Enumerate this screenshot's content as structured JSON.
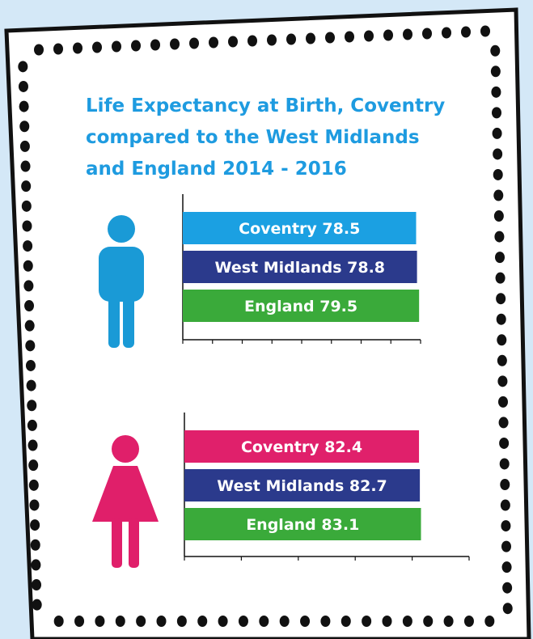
{
  "title": "Life Expectancy at Birth, Coventry compared to the West Midlands and England 2014 - 2016",
  "chart_data": [
    {
      "type": "bar",
      "categories": [
        "Coventry",
        "West Midlands",
        "England"
      ],
      "values": [
        78.5,
        78.8,
        79.5
      ],
      "colors": [
        "#1ba0e2",
        "#2b3a8c",
        "#3aaa3a"
      ],
      "xlim": [
        0,
        80
      ],
      "xticks": [
        0,
        10,
        20,
        30,
        40,
        50,
        60,
        70,
        80
      ]
    },
    {
      "type": "bar",
      "categories": [
        "Coventry",
        "West Midlands",
        "England"
      ],
      "values": [
        82.4,
        82.7,
        83.1
      ],
      "colors": [
        "#e0206b",
        "#2b3a8c",
        "#3aaa3a"
      ],
      "xlim": [
        0,
        100
      ],
      "xticks": [
        0,
        20,
        40,
        60,
        80,
        100
      ]
    }
  ]
}
